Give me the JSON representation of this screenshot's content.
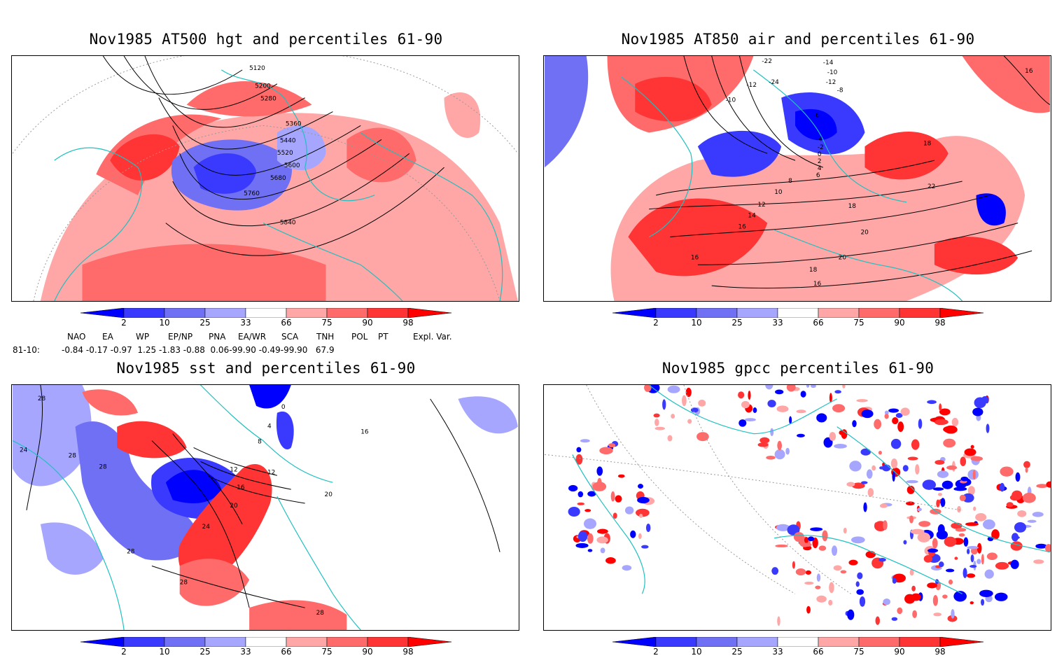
{
  "panels": [
    {
      "title": "Nov1985 AT500 hgt and percentiles 61-90",
      "contour_labels": [
        "5120",
        "5200",
        "5280",
        "5360",
        "5440",
        "5520",
        "5600",
        "5680",
        "5760",
        "5840"
      ]
    },
    {
      "title": "Nov1985 AT850 air and percentiles 61-90",
      "contour_labels": [
        "-22",
        "-14",
        "-12",
        "-10",
        "-24",
        "-12",
        "-10",
        "-8",
        "-6",
        "-4",
        "-2",
        "0",
        "2",
        "4",
        "6",
        "8",
        "10",
        "12",
        "14",
        "16",
        "16",
        "16",
        "18",
        "18",
        "18",
        "20",
        "20",
        "22",
        "16"
      ]
    },
    {
      "title": "Nov1985 sst and percentiles 61-90",
      "contour_labels": [
        "28",
        "24",
        "28",
        "28",
        "28",
        "28",
        "0",
        "4",
        "8",
        "12",
        "16",
        "20",
        "24",
        "28",
        "20",
        "12",
        "16"
      ]
    },
    {
      "title": "Nov1985 gpcc percentiles 61-90",
      "contour_labels": []
    }
  ],
  "colorbar": {
    "ticks": [
      "2",
      "10",
      "25",
      "33",
      "66",
      "75",
      "90",
      "98"
    ],
    "colors": {
      "dark_blue": "#0000ff",
      "blue": "#3a3aff",
      "mid_blue": "#7070f5",
      "light_blue": "#a6a6ff",
      "white": "#ffffff",
      "light_red": "#ffa6a6",
      "mid_red": "#ff6a6a",
      "red": "#ff3434",
      "dark_red": "#ff0000"
    }
  },
  "indices": {
    "headers": [
      "NAO",
      "EA",
      "WP",
      "EP/NP",
      "PNA",
      "EA/WR",
      "SCA",
      "TNH",
      "POL",
      "PT",
      "Expl. Var."
    ],
    "row_label": "81-10:",
    "values_text": "-0.84 -0.17 -0.97  1.25 -1.83 -0.88  0.06-99.90 -0.49-99.90   67.9"
  },
  "map_colors": {
    "coast": "#20c0c0",
    "contour": "#000000",
    "grid": "#999999"
  }
}
